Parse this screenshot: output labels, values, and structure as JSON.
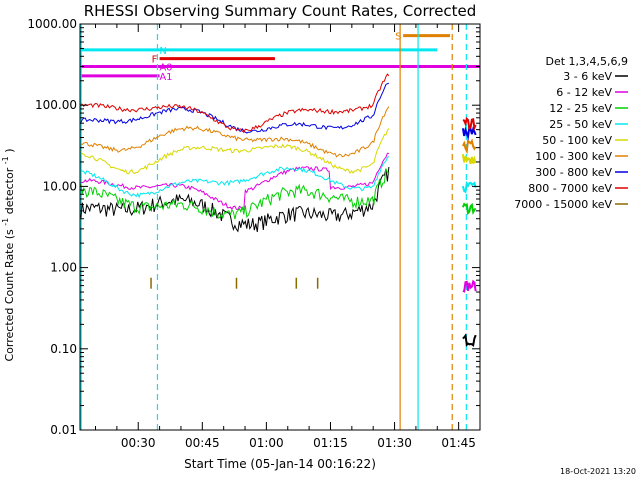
{
  "chart_data": {
    "type": "line",
    "title": "RHESSI Observing Summary Count Rates, Corrected",
    "xlabel": "Start Time (05-Jan-14 00:16:22)",
    "ylabel": "Corrected Count Rate (s",
    "ylabel_sup": "-1",
    "ylabel_end": " detector",
    "ylabel_sup2": "-1",
    "ylabel_close": ")",
    "yscale": "log",
    "ylim": [
      0.01,
      1000
    ],
    "xlim_minutes": [
      16.37,
      83
    ],
    "y_ticks": [
      {
        "value": 0.01,
        "label": "0.01"
      },
      {
        "value": 0.1,
        "label": "0.10"
      },
      {
        "value": 1,
        "label": "1.00"
      },
      {
        "value": 10,
        "label": "10.00"
      },
      {
        "value": 100,
        "label": "100.00"
      },
      {
        "value": 1000,
        "label": "1000.00"
      }
    ],
    "x_ticks": [
      {
        "minute": 30,
        "label": "00:30"
      },
      {
        "minute": 45,
        "label": "00:45"
      },
      {
        "minute": 60,
        "label": "01:00"
      },
      {
        "minute": 75,
        "label": "01:15"
      },
      {
        "minute": 90,
        "label": "01:30"
      },
      {
        "minute": 105,
        "label": "01:45"
      }
    ],
    "legend_title": "Det 1,3,4,5,6,9",
    "legend_position": "right",
    "series": [
      {
        "name": "3 - 6 keV",
        "color": "#000000",
        "level": 5.0,
        "after": 0.13
      },
      {
        "name": "6 - 12 keV",
        "color": "#e000e0",
        "level": 9.0,
        "after": 0.6
      },
      {
        "name": "12 - 25 keV",
        "color": "#00d000",
        "level": 6.5,
        "after": 5.5
      },
      {
        "name": "25 - 50 keV",
        "color": "#00e8f0",
        "level": 12.0,
        "after": 10.0
      },
      {
        "name": "50 - 100 keV",
        "color": "#d8d800",
        "level": 25.0,
        "after": 22.0
      },
      {
        "name": "100 - 300 keV",
        "color": "#e08000",
        "level": 38.0,
        "after": 32.0
      },
      {
        "name": "300 - 800 keV",
        "color": "#0000e0",
        "level": 65.0,
        "after": 48.0
      },
      {
        "name": "800 - 7000 keV",
        "color": "#e00000",
        "level": 80.0,
        "after": 60.0
      },
      {
        "name": "7000 - 15000 keV",
        "color": "#8b6b00",
        "level": 0.6,
        "after": null
      }
    ],
    "flag_bars": [
      {
        "label": "N",
        "color": "#00e8f0",
        "y": 480,
        "x_start": 16.37,
        "x_end": 100
      },
      {
        "label": "F",
        "color": "#e00000",
        "y": 375,
        "x_start": 35,
        "x_end": 62
      },
      {
        "label": "A0",
        "color": "#e000e0",
        "y": 300,
        "x_start": 16.37,
        "x_end": 110
      },
      {
        "label": "A1",
        "color": "#e000e0",
        "y": 230,
        "x_start": 16.37,
        "x_end": 35
      },
      {
        "label": "S",
        "color": "#e08000",
        "y": 720,
        "x_start": 92,
        "x_end": 103
      }
    ],
    "markers": [
      {
        "minute": 34.5,
        "color": "#00e8f0",
        "style": "dashed"
      },
      {
        "minute": 91.3,
        "color": "#e08000",
        "style": "solid"
      },
      {
        "minute": 95.5,
        "color": "#00e8f0",
        "style": "solid"
      },
      {
        "minute": 103.5,
        "color": "#e08000",
        "style": "dashed"
      },
      {
        "minute": 106.8,
        "color": "#00e8f0",
        "style": "dashed"
      }
    ],
    "footer_date": "18-Oct-2021 13:20"
  }
}
